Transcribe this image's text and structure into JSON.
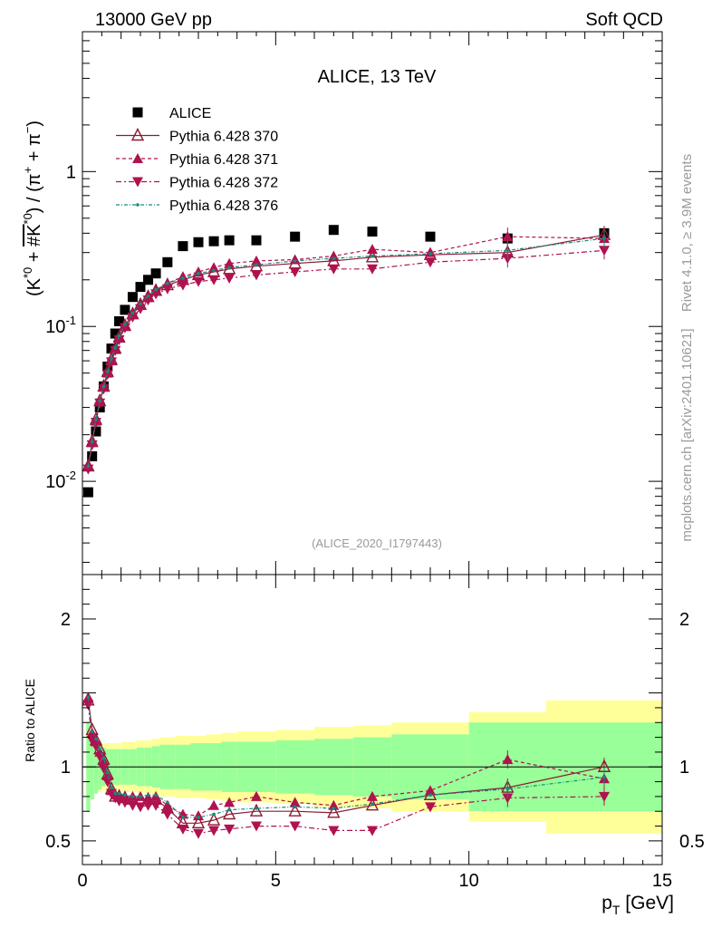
{
  "header": {
    "left": "13000 GeV pp",
    "right": "Soft QCD"
  },
  "side": {
    "rivet": "Rivet 4.1.0, ≥ 3.9M events",
    "mcplots": "mcplots.cern.ch [arXiv:2401.10621]"
  },
  "chart_data": [
    {
      "type": "scatter",
      "title": "ALICE, 13 TeV",
      "analysis_label": "(ALICE_2020_I1797443)",
      "ylabel": "(K*0 + #K*0) / (π+ + π−)",
      "xlabel": "",
      "yscale": "log",
      "ylim": [
        0.0025,
        8.0
      ],
      "xlim": [
        0,
        15
      ],
      "x_ticks": [
        "0",
        "5",
        "10",
        "15"
      ],
      "y_ticks": [
        {
          "value": 0.01,
          "label": "10",
          "exp": "-2"
        },
        {
          "value": 0.1,
          "label": "10",
          "exp": "-1"
        },
        {
          "value": 1,
          "label": "1",
          "exp": ""
        }
      ],
      "legend_position": "top-left",
      "series": [
        {
          "name": "ALICE",
          "style": "square",
          "color": "#000000",
          "x": [
            0.15,
            0.25,
            0.35,
            0.45,
            0.55,
            0.65,
            0.75,
            0.85,
            0.95,
            1.1,
            1.3,
            1.5,
            1.7,
            1.9,
            2.2,
            2.6,
            3.0,
            3.4,
            3.8,
            4.5,
            5.5,
            6.5,
            7.5,
            9.0,
            11.0,
            13.5
          ],
          "y": [
            0.0085,
            0.0145,
            0.021,
            0.03,
            0.041,
            0.055,
            0.072,
            0.09,
            0.108,
            0.128,
            0.155,
            0.18,
            0.2,
            0.22,
            0.26,
            0.33,
            0.35,
            0.355,
            0.36,
            0.36,
            0.38,
            0.42,
            0.41,
            0.38,
            0.37,
            0.4
          ]
        },
        {
          "name": "Pythia 6.428 370",
          "style": "open-triangle",
          "color": "#8b1a32",
          "x": [
            0.15,
            0.25,
            0.35,
            0.45,
            0.55,
            0.65,
            0.75,
            0.85,
            0.95,
            1.1,
            1.3,
            1.5,
            1.7,
            1.9,
            2.2,
            2.6,
            3.0,
            3.4,
            3.8,
            4.5,
            5.5,
            6.5,
            7.5,
            9.0,
            11.0,
            13.5
          ],
          "y": [
            0.0125,
            0.018,
            0.025,
            0.033,
            0.041,
            0.051,
            0.061,
            0.072,
            0.085,
            0.101,
            0.12,
            0.138,
            0.155,
            0.17,
            0.185,
            0.2,
            0.215,
            0.225,
            0.235,
            0.245,
            0.255,
            0.265,
            0.28,
            0.29,
            0.3,
            0.39
          ]
        },
        {
          "name": "Pythia 6.428 371",
          "style": "filled-triangle-up",
          "color": "#b0124f",
          "x": [
            0.15,
            0.25,
            0.35,
            0.45,
            0.55,
            0.65,
            0.75,
            0.85,
            0.95,
            1.1,
            1.3,
            1.5,
            1.7,
            1.9,
            2.2,
            2.6,
            3.0,
            3.4,
            3.8,
            4.5,
            5.5,
            6.5,
            7.5,
            9.0,
            11.0,
            13.5
          ],
          "y": [
            0.0125,
            0.0178,
            0.0245,
            0.0325,
            0.0405,
            0.05,
            0.06,
            0.071,
            0.084,
            0.1,
            0.12,
            0.138,
            0.155,
            0.172,
            0.19,
            0.21,
            0.225,
            0.24,
            0.255,
            0.265,
            0.27,
            0.285,
            0.315,
            0.3,
            0.38,
            0.37
          ]
        },
        {
          "name": "Pythia 6.428 372",
          "style": "filled-triangle-down",
          "color": "#b0124f",
          "x": [
            0.15,
            0.25,
            0.35,
            0.45,
            0.55,
            0.65,
            0.75,
            0.85,
            0.95,
            1.1,
            1.3,
            1.5,
            1.7,
            1.9,
            2.2,
            2.6,
            3.0,
            3.4,
            3.8,
            4.5,
            5.5,
            6.5,
            7.5,
            9.0,
            11.0,
            13.5
          ],
          "y": [
            0.012,
            0.0172,
            0.024,
            0.032,
            0.0395,
            0.049,
            0.059,
            0.07,
            0.082,
            0.098,
            0.115,
            0.13,
            0.148,
            0.162,
            0.175,
            0.185,
            0.195,
            0.2,
            0.205,
            0.215,
            0.225,
            0.235,
            0.235,
            0.26,
            0.275,
            0.31
          ]
        },
        {
          "name": "Pythia 6.428 376",
          "style": "dot",
          "color": "#178a7a",
          "x": [
            0.15,
            0.25,
            0.35,
            0.45,
            0.55,
            0.65,
            0.75,
            0.85,
            0.95,
            1.1,
            1.3,
            1.5,
            1.7,
            1.9,
            2.2,
            2.6,
            3.0,
            3.4,
            3.8,
            4.5,
            5.5,
            6.5,
            7.5,
            9.0,
            11.0,
            13.5
          ],
          "y": [
            0.0125,
            0.018,
            0.025,
            0.033,
            0.041,
            0.051,
            0.062,
            0.073,
            0.087,
            0.103,
            0.122,
            0.14,
            0.157,
            0.173,
            0.19,
            0.205,
            0.22,
            0.23,
            0.24,
            0.25,
            0.265,
            0.275,
            0.285,
            0.295,
            0.31,
            0.37
          ]
        }
      ]
    },
    {
      "type": "scatter",
      "title": "",
      "ylabel": "Ratio to ALICE",
      "xlabel": "p_T [GeV]",
      "xlabel_main": "p",
      "xlabel_sub": "T",
      "xlabel_unit": " [GeV]",
      "ylim": [
        0.34,
        2.3
      ],
      "xlim": [
        0,
        15
      ],
      "x_ticks": [
        "0",
        "5",
        "10",
        "15"
      ],
      "y_ticks": [
        "0.5",
        "1",
        "2"
      ],
      "reference_line": 1,
      "bands": {
        "edges": [
          0.1,
          0.2,
          0.3,
          0.4,
          0.5,
          0.6,
          0.7,
          0.8,
          0.9,
          1.0,
          1.2,
          1.4,
          1.6,
          1.8,
          2.0,
          2.4,
          2.8,
          3.2,
          3.6,
          4.0,
          5.0,
          6.0,
          7.0,
          8.0,
          10.0,
          12.0,
          15.0
        ],
        "inner": [
          0.3,
          0.22,
          0.18,
          0.15,
          0.13,
          0.12,
          0.12,
          0.12,
          0.12,
          0.12,
          0.12,
          0.13,
          0.13,
          0.14,
          0.15,
          0.15,
          0.16,
          0.16,
          0.17,
          0.17,
          0.18,
          0.19,
          0.2,
          0.22,
          0.3,
          0.3
        ],
        "outer": [
          0.3,
          0.22,
          0.18,
          0.17,
          0.16,
          0.16,
          0.16,
          0.16,
          0.16,
          0.17,
          0.17,
          0.18,
          0.18,
          0.19,
          0.2,
          0.21,
          0.21,
          0.22,
          0.23,
          0.24,
          0.25,
          0.27,
          0.28,
          0.3,
          0.37,
          0.45
        ],
        "inner_color": "#99ff99",
        "outer_color": "#ffff99"
      },
      "series": [
        {
          "name": "Pythia 6.428 370",
          "style": "open-triangle",
          "color": "#8b1a32",
          "x": [
            0.15,
            0.25,
            0.35,
            0.45,
            0.55,
            0.65,
            0.75,
            0.85,
            0.95,
            1.1,
            1.3,
            1.5,
            1.7,
            1.9,
            2.2,
            2.6,
            3.0,
            3.4,
            3.8,
            4.5,
            5.5,
            6.5,
            7.5,
            9.0,
            11.0,
            13.5
          ],
          "y": [
            1.45,
            1.25,
            1.18,
            1.12,
            1.05,
            0.95,
            0.85,
            0.8,
            0.8,
            0.79,
            0.78,
            0.78,
            0.78,
            0.78,
            0.72,
            0.62,
            0.62,
            0.64,
            0.68,
            0.7,
            0.7,
            0.69,
            0.74,
            0.81,
            0.86,
            1.0
          ]
        },
        {
          "name": "Pythia 6.428 371",
          "style": "filled-triangle-up",
          "color": "#b0124f",
          "x": [
            0.15,
            0.25,
            0.35,
            0.45,
            0.55,
            0.65,
            0.75,
            0.85,
            0.95,
            1.1,
            1.3,
            1.5,
            1.7,
            1.9,
            2.2,
            2.6,
            3.0,
            3.4,
            3.8,
            4.5,
            5.5,
            6.5,
            7.5,
            9.0,
            11.0,
            13.5
          ],
          "y": [
            1.47,
            1.23,
            1.17,
            1.1,
            1.04,
            0.94,
            0.84,
            0.81,
            0.8,
            0.8,
            0.8,
            0.8,
            0.79,
            0.8,
            0.74,
            0.68,
            0.67,
            0.74,
            0.76,
            0.8,
            0.76,
            0.74,
            0.8,
            0.84,
            1.05,
            0.92
          ]
        },
        {
          "name": "Pythia 6.428 372",
          "style": "filled-triangle-down",
          "color": "#b0124f",
          "x": [
            0.15,
            0.25,
            0.35,
            0.45,
            0.55,
            0.65,
            0.75,
            0.85,
            0.95,
            1.1,
            1.3,
            1.5,
            1.7,
            1.9,
            2.2,
            2.6,
            3.0,
            3.4,
            3.8,
            4.5,
            5.5,
            6.5,
            7.5,
            9.0,
            11.0,
            13.5
          ],
          "y": [
            1.42,
            1.18,
            1.14,
            1.07,
            0.99,
            0.9,
            0.82,
            0.79,
            0.77,
            0.76,
            0.74,
            0.73,
            0.74,
            0.74,
            0.68,
            0.58,
            0.55,
            0.57,
            0.58,
            0.6,
            0.6,
            0.57,
            0.57,
            0.73,
            0.79,
            0.8
          ]
        },
        {
          "name": "Pythia 6.428 376",
          "style": "dot",
          "color": "#178a7a",
          "x": [
            0.15,
            0.25,
            0.35,
            0.45,
            0.55,
            0.65,
            0.75,
            0.85,
            0.95,
            1.1,
            1.3,
            1.5,
            1.7,
            1.9,
            2.2,
            2.6,
            3.0,
            3.4,
            3.8,
            4.5,
            5.5,
            6.5,
            7.5,
            9.0,
            11.0,
            13.5
          ],
          "y": [
            1.47,
            1.24,
            1.19,
            1.12,
            1.06,
            0.96,
            0.86,
            0.82,
            0.82,
            0.81,
            0.8,
            0.8,
            0.81,
            0.81,
            0.76,
            0.66,
            0.66,
            0.68,
            0.71,
            0.72,
            0.73,
            0.72,
            0.75,
            0.81,
            0.85,
            0.93
          ]
        }
      ]
    }
  ]
}
